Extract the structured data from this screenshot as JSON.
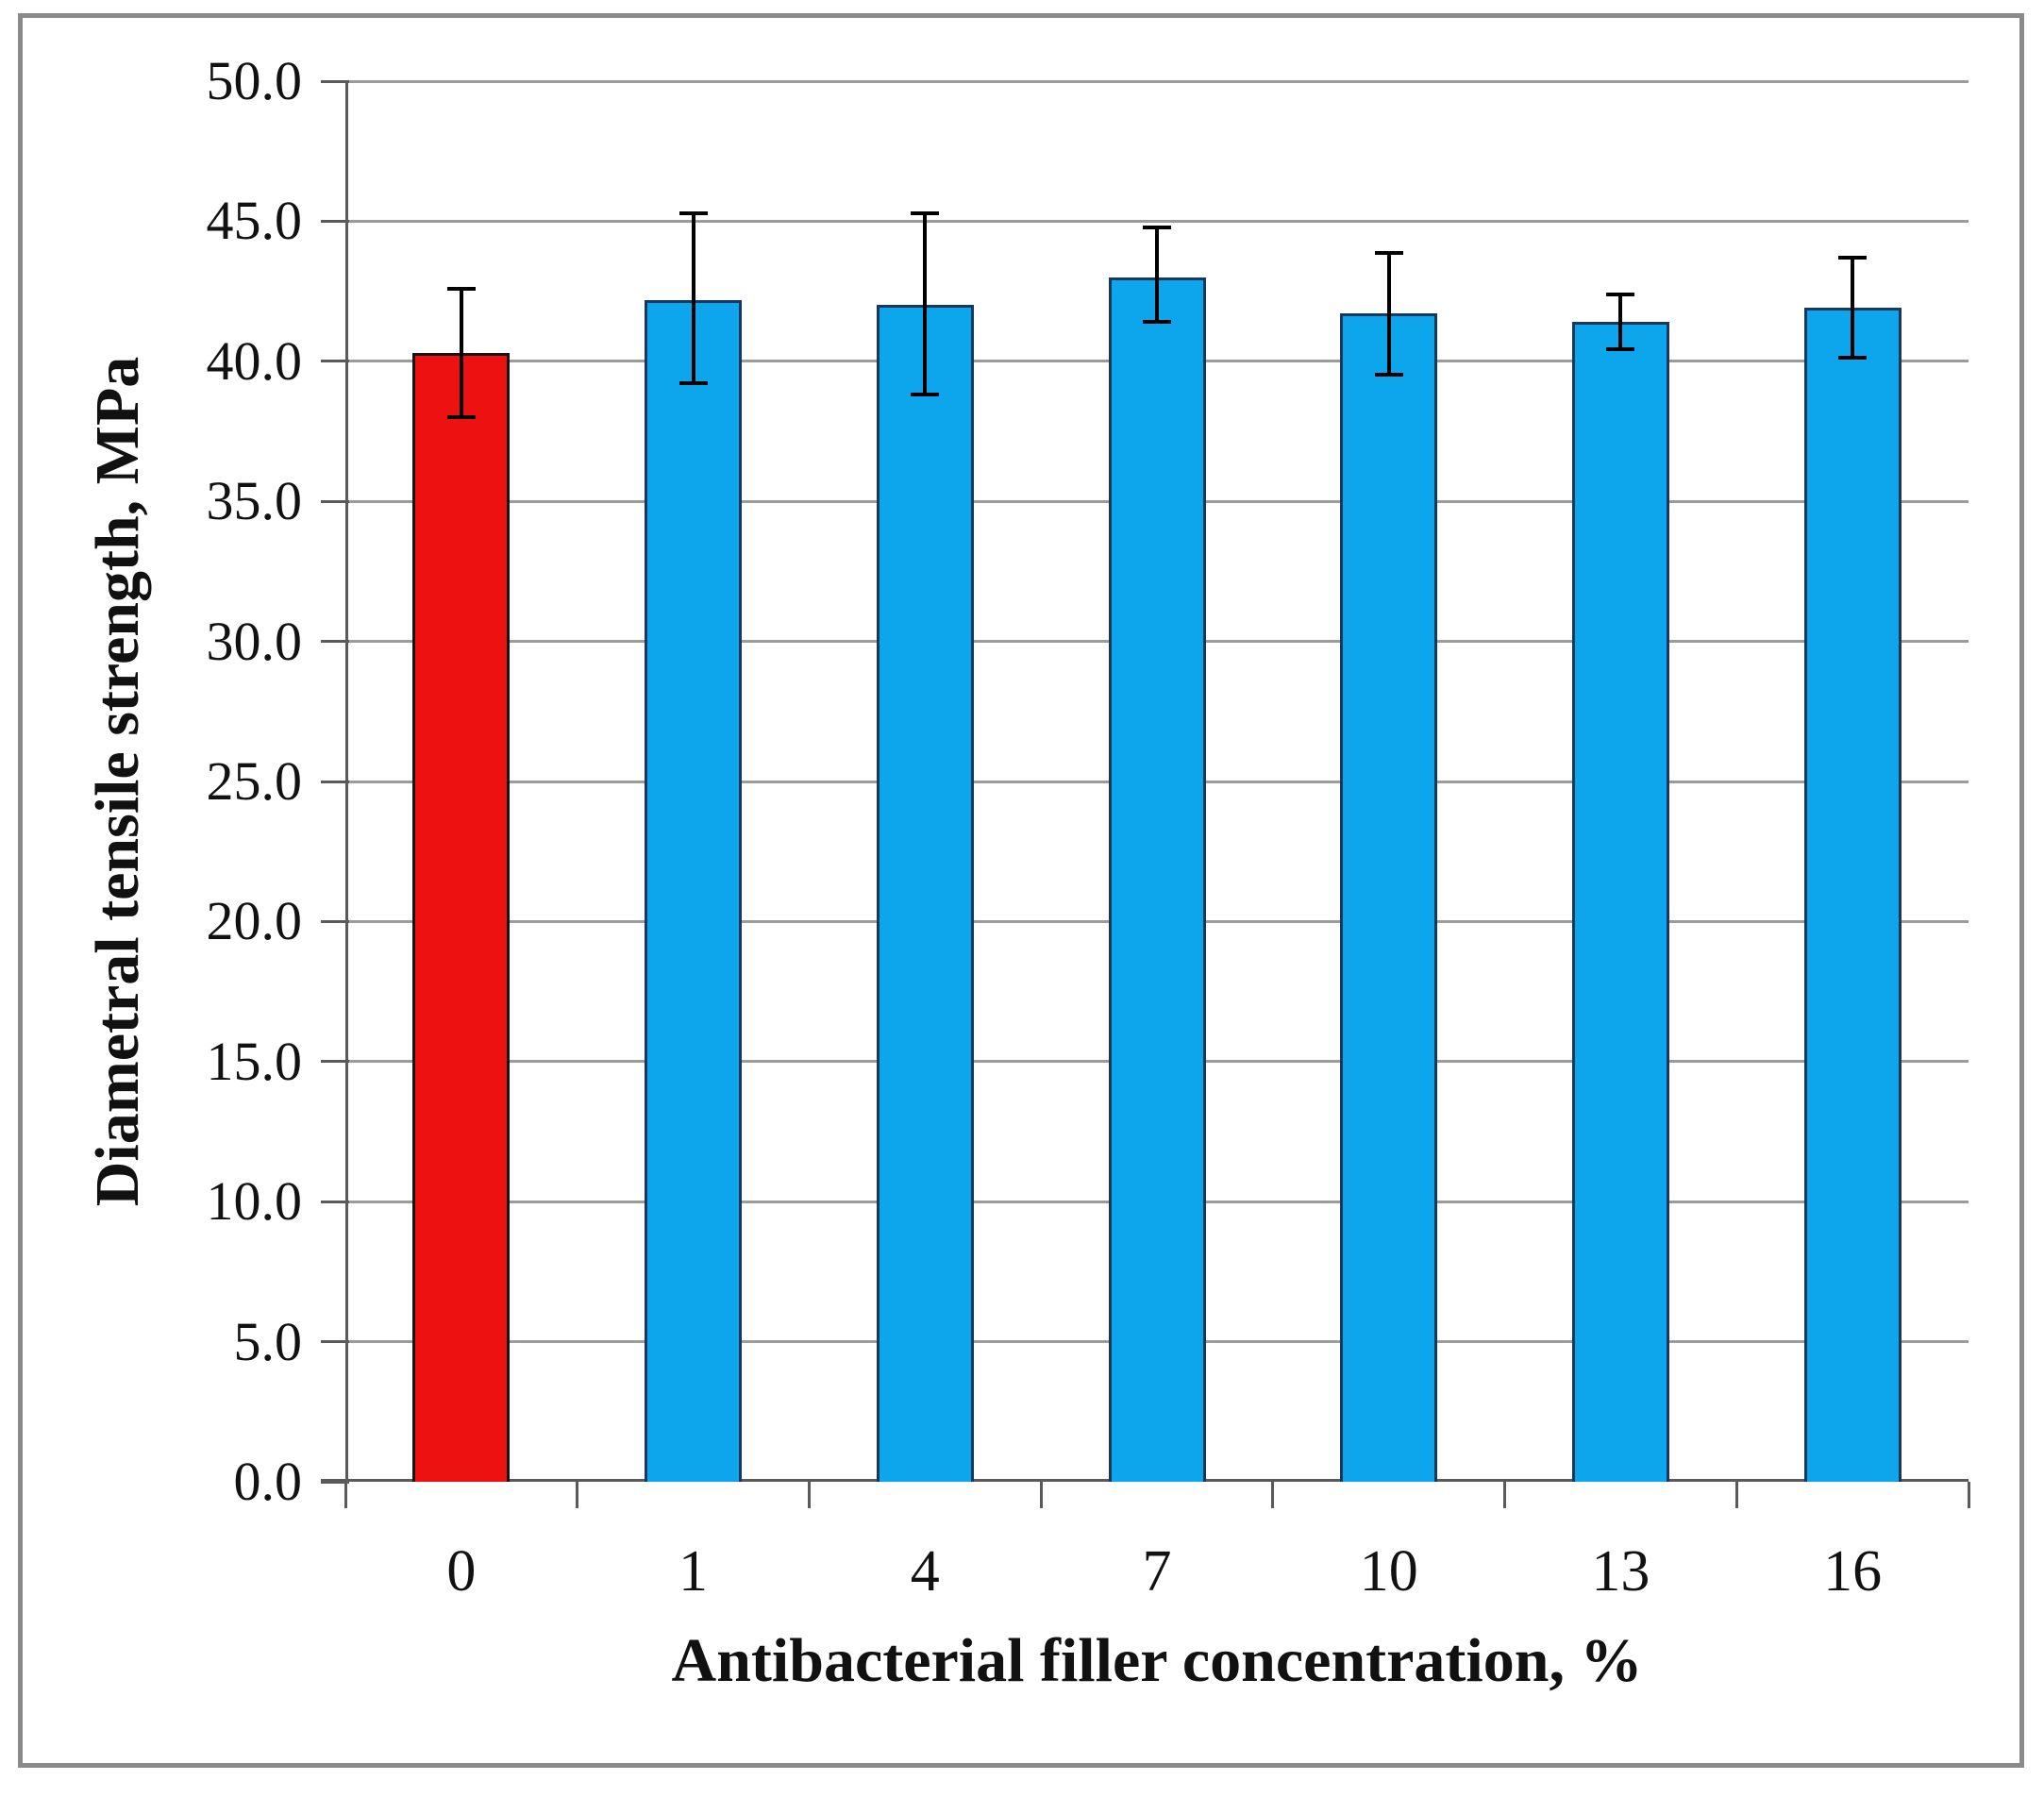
{
  "figure": {
    "background": "#ffffff",
    "frame_border_color": "#8a8a8a"
  },
  "chart_data": {
    "type": "bar",
    "title": "",
    "xlabel": "Antibacterial filler concentration, %",
    "ylabel": "Diametral tensile strength, MPa",
    "categories": [
      "0",
      "1",
      "4",
      "7",
      "10",
      "13",
      "16"
    ],
    "series": [
      {
        "name": "Diametral tensile strength",
        "values": [
          40.3,
          42.2,
          42.0,
          43.0,
          41.7,
          41.4,
          41.9
        ],
        "error_low": [
          38.0,
          39.2,
          38.8,
          41.4,
          39.5,
          40.4,
          40.1
        ],
        "error_high": [
          42.6,
          45.3,
          45.3,
          44.8,
          43.9,
          42.4,
          43.7
        ]
      }
    ],
    "ylim": [
      0,
      50
    ],
    "ytick_step": 5,
    "ytick_labels": [
      "0.0",
      "5.0",
      "10.0",
      "15.0",
      "20.0",
      "25.0",
      "30.0",
      "35.0",
      "40.0",
      "45.0",
      "50.0"
    ],
    "grid": "horizontal",
    "legend": "none",
    "colors": {
      "bar_fills": [
        "#ee1111",
        "#0da5ec",
        "#0da5ec",
        "#0da5ec",
        "#0da5ec",
        "#0da5ec",
        "#0da5ec"
      ],
      "bar_borders": [
        "#141414",
        "#17375e",
        "#17375e",
        "#17375e",
        "#17375e",
        "#17375e",
        "#17375e"
      ],
      "error_bar": "#000000",
      "gridline": "#9b9b9b",
      "axis": "#5a5a5a",
      "text": "#111111"
    }
  }
}
